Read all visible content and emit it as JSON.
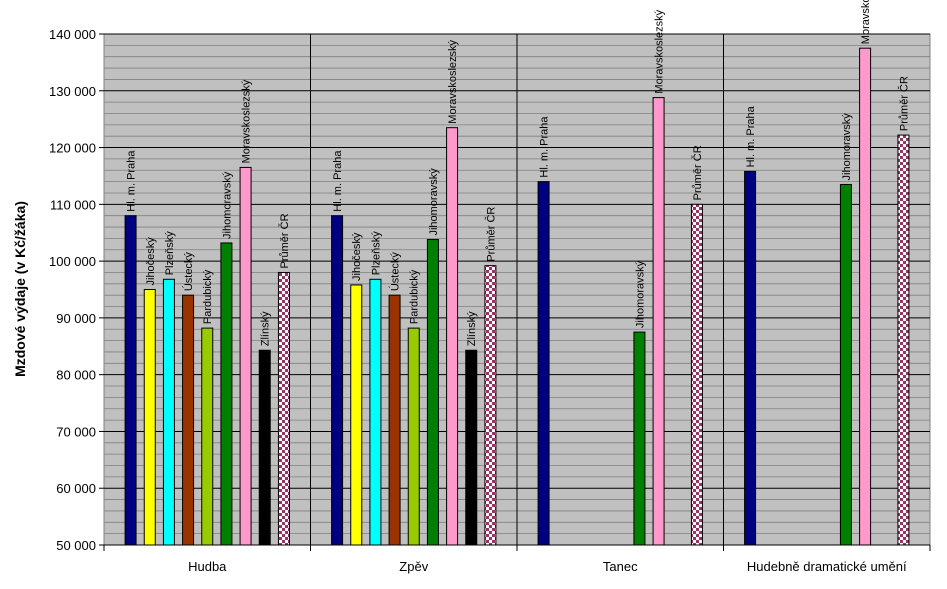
{
  "chart_data": {
    "type": "bar",
    "ylabel": "Mzdové výdaje (v Kč/žáka)",
    "ylim": [
      50000,
      140000
    ],
    "yticks": [
      50000,
      60000,
      70000,
      80000,
      90000,
      100000,
      110000,
      120000,
      130000,
      140000
    ],
    "ytick_labels": [
      "50 000",
      "60 000",
      "70 000",
      "80 000",
      "90 000",
      "100 000",
      "110 000",
      "120 000",
      "130 000",
      "140 000"
    ],
    "grid": true,
    "plot_background": "#c0c0c0",
    "categories": [
      "Hudba",
      "Zpěv",
      "Tanec",
      "Hudebně dramatické umění"
    ],
    "series": [
      {
        "name": "Hl. m. Praha",
        "color": "#000080",
        "values": [
          108000,
          108000,
          114000,
          115800
        ]
      },
      {
        "name": "Jihočeský",
        "color": "#ffff00",
        "values": [
          95000,
          95800,
          null,
          null
        ]
      },
      {
        "name": "Plzeňský",
        "color": "#00ffff",
        "values": [
          96800,
          96800,
          null,
          null
        ]
      },
      {
        "name": "Ústecký",
        "color": "#993300",
        "values": [
          94000,
          94000,
          null,
          null
        ]
      },
      {
        "name": "Pardubický",
        "color": "#99cc00",
        "values": [
          88200,
          88200,
          null,
          null
        ]
      },
      {
        "name": "Jihomoravský",
        "color": "#008000",
        "values": [
          103200,
          103800,
          87500,
          113500
        ]
      },
      {
        "name": "Moravskoslezský",
        "color": "#ff99cc",
        "values": [
          116500,
          123500,
          128800,
          137500
        ]
      },
      {
        "name": "Zlínský",
        "color": "#000000",
        "values": [
          84300,
          84300,
          null,
          null
        ]
      },
      {
        "name": "Průměr ČR",
        "color": "#993366",
        "pattern": "checker",
        "values": [
          98000,
          99200,
          110000,
          122200
        ]
      }
    ]
  }
}
